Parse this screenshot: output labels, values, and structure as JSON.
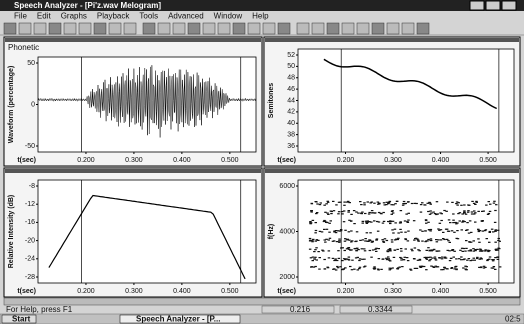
{
  "window": {
    "title": "Speech Analyzer - [Pi'z.wav Melogram]",
    "menu": [
      "File",
      "Edit",
      "Graphs",
      "Playback",
      "Tools",
      "Advanced",
      "Window",
      "Help"
    ]
  },
  "panes": [
    {
      "label": "Phonetic",
      "y_axis": "Waveform (percentage)",
      "yticks": [
        "50",
        "0",
        "-50"
      ],
      "x_axis": "t(sec)",
      "xticks": [
        "0.200",
        "0.300",
        "0.400",
        "0.500"
      ]
    },
    {
      "y_axis": "Semitones",
      "yticks": [
        "52",
        "50",
        "48",
        "46",
        "44",
        "42",
        "40",
        "38",
        "36"
      ],
      "x_axis": "t(sec)",
      "xticks": [
        "0.200",
        "0.300",
        "0.400",
        "0.500"
      ]
    },
    {
      "y_axis": "Relative Intensity (dB)",
      "yticks": [
        "-8",
        "-12",
        "-16",
        "-20",
        "-24",
        "-28"
      ],
      "x_axis": "t(sec)",
      "xticks": [
        "0.200",
        "0.300",
        "0.400",
        "0.500"
      ]
    },
    {
      "y_axis": "f(Hz)",
      "yticks": [
        "6000",
        "4000",
        "2000"
      ],
      "x_axis": "t(sec)",
      "xticks": [
        "0.200",
        "0.300",
        "0.400",
        "0.500"
      ]
    }
  ],
  "status": {
    "help": "For Help, press F1",
    "cursor_start": "0.216",
    "cursor_end": "0.3344"
  },
  "taskbar": {
    "start": "Start",
    "task": "Speech Analyzer - [P...",
    "clock": "02:5"
  }
}
